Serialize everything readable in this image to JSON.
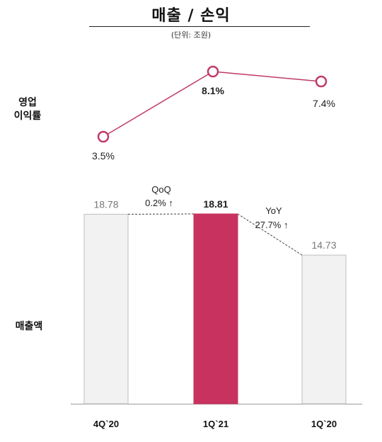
{
  "title": "매출 / 손익",
  "unit": "(단위: 조원)",
  "row_labels": {
    "margin_line1": "영업",
    "margin_line2": "이익률",
    "revenue": "매출액"
  },
  "annotations": {
    "qoq_label": "QoQ",
    "qoq_value": "0.2% ↑",
    "yoy_label": "YoY",
    "yoy_value": "27.7% ↑"
  },
  "colors": {
    "highlight_bar": "#c8325f",
    "normal_bar": "#f2f2f2",
    "bar_border": "#bfbfbf",
    "line": "#c0396a",
    "marker_fill": "#ffffff"
  },
  "chart_data": [
    {
      "type": "bar",
      "categories": [
        "4Q`20",
        "1Q`21",
        "1Q`20"
      ],
      "values": [
        18.78,
        18.81,
        14.73
      ],
      "value_labels": [
        "18.78",
        "18.81",
        "14.73"
      ],
      "highlight_index": 1,
      "ylabel": "매출액",
      "ylim": [
        0,
        18.81
      ]
    },
    {
      "type": "line",
      "categories": [
        "4Q`20",
        "1Q`21",
        "1Q`20"
      ],
      "values": [
        3.5,
        8.1,
        7.4
      ],
      "value_labels": [
        "3.5%",
        "8.1%",
        "7.4%"
      ],
      "highlight_index": 1,
      "ylabel": "영업이익률",
      "ylim": [
        3.5,
        8.1
      ]
    }
  ]
}
